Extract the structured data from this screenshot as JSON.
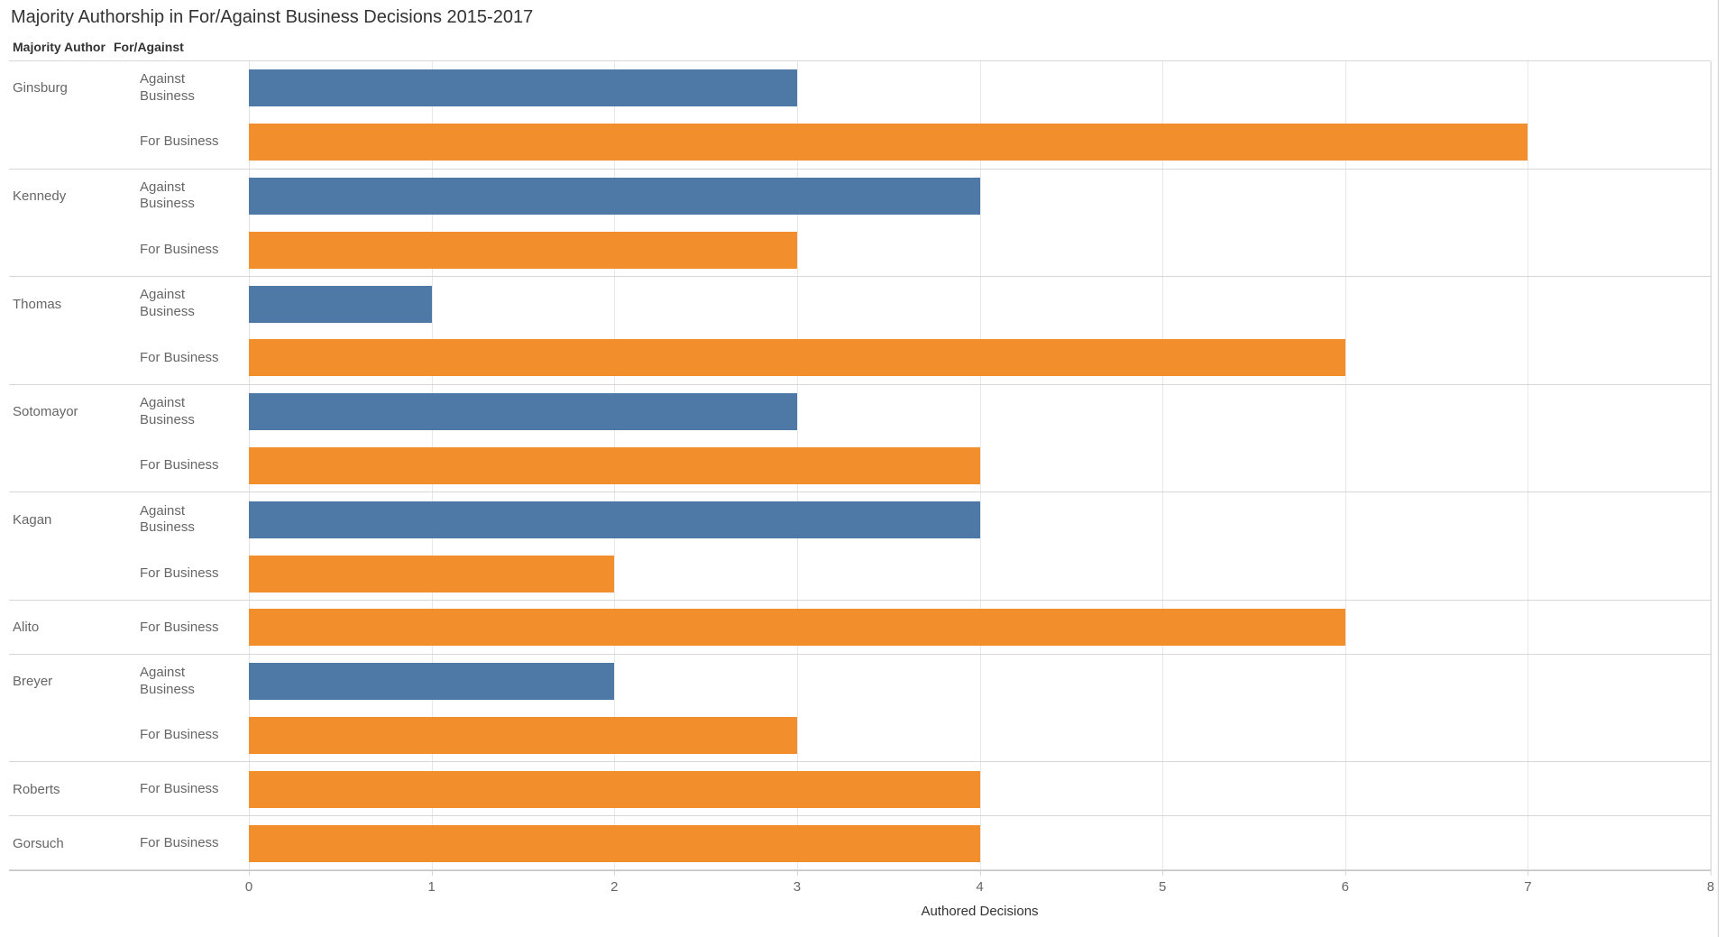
{
  "title": "Majority Authorship in For/Against Business Decisions 2015-2017",
  "columns": {
    "author": "Majority Author",
    "category": "For/Against"
  },
  "axis": {
    "label": "Authored Decisions",
    "ticks": [
      0,
      1,
      2,
      3,
      4,
      5,
      6,
      7,
      8
    ],
    "min": 0,
    "max": 8
  },
  "colors": {
    "against_business": "#4e79a7",
    "for_business": "#f28e2b"
  },
  "chart_data": {
    "type": "bar",
    "orientation": "horizontal",
    "title": "Majority Authorship in For/Against Business Decisions 2015-2017",
    "xlabel": "Authored Decisions",
    "xlim": [
      0,
      8
    ],
    "x_ticks": [
      0,
      1,
      2,
      3,
      4,
      5,
      6,
      7,
      8
    ],
    "grid": true,
    "series_labels": {
      "against": "Against Business",
      "for": "For Business"
    },
    "groups": [
      {
        "author": "Ginsburg",
        "bars": [
          {
            "category": "Against Business",
            "value": 3
          },
          {
            "category": "For Business",
            "value": 7
          }
        ]
      },
      {
        "author": "Kennedy",
        "bars": [
          {
            "category": "Against Business",
            "value": 4
          },
          {
            "category": "For Business",
            "value": 3
          }
        ]
      },
      {
        "author": "Thomas",
        "bars": [
          {
            "category": "Against Business",
            "value": 1
          },
          {
            "category": "For Business",
            "value": 6
          }
        ]
      },
      {
        "author": "Sotomayor",
        "bars": [
          {
            "category": "Against Business",
            "value": 3
          },
          {
            "category": "For Business",
            "value": 4
          }
        ]
      },
      {
        "author": "Kagan",
        "bars": [
          {
            "category": "Against Business",
            "value": 4
          },
          {
            "category": "For Business",
            "value": 2
          }
        ]
      },
      {
        "author": "Alito",
        "bars": [
          {
            "category": "For Business",
            "value": 6
          }
        ]
      },
      {
        "author": "Breyer",
        "bars": [
          {
            "category": "Against Business",
            "value": 2
          },
          {
            "category": "For Business",
            "value": 3
          }
        ]
      },
      {
        "author": "Roberts",
        "bars": [
          {
            "category": "For Business",
            "value": 4
          }
        ]
      },
      {
        "author": "Gorsuch",
        "bars": [
          {
            "category": "For Business",
            "value": 4
          }
        ]
      }
    ]
  }
}
